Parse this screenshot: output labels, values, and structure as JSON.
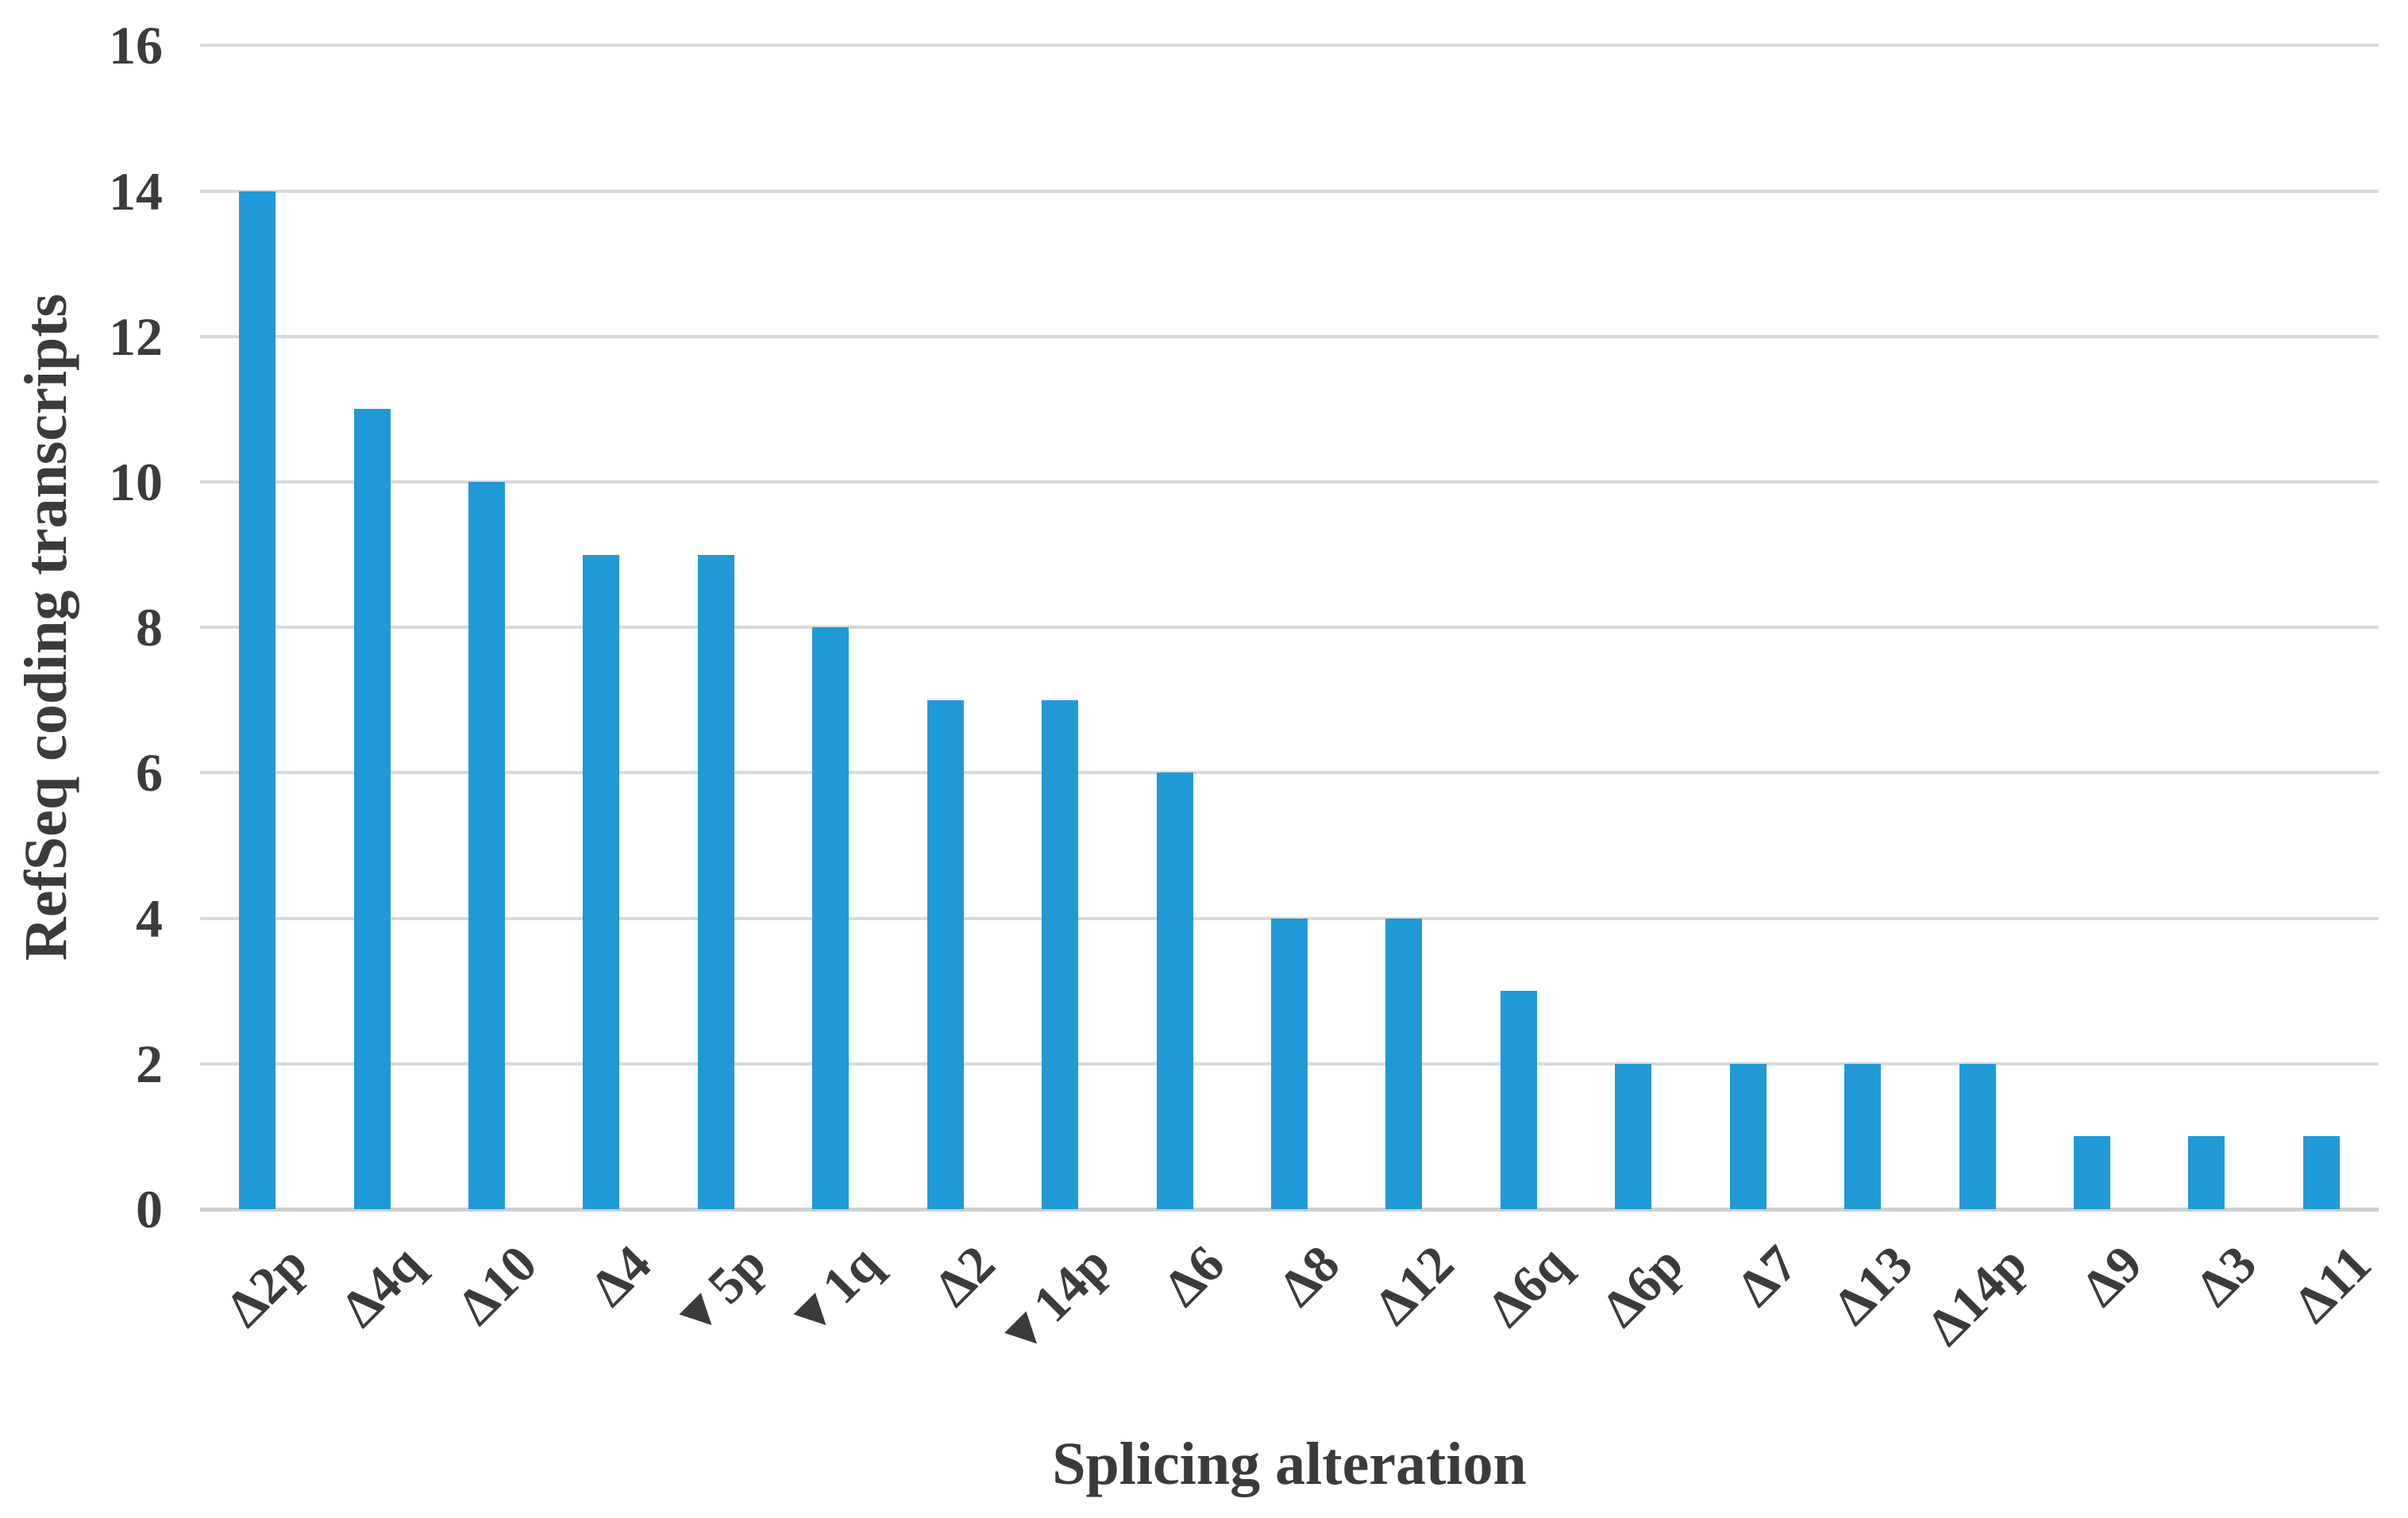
{
  "chart_data": {
    "type": "bar",
    "title": "",
    "xlabel": "Splicing alteration",
    "ylabel": "RefSeq coding transcripts",
    "categories": [
      "Δ2p",
      "Δ4q",
      "Δ10",
      "Δ4",
      "▼5p",
      "▼1q",
      "Δ2",
      "▼14p",
      "Δ6",
      "Δ8",
      "Δ12",
      "Δ6q",
      "Δ6p",
      "Δ7",
      "Δ13",
      "Δ14p",
      "Δ9",
      "Δ3",
      "Δ11"
    ],
    "values": [
      14,
      11,
      10,
      9,
      9,
      8,
      7,
      7,
      6,
      4,
      4,
      3,
      2,
      2,
      2,
      2,
      1,
      1,
      1
    ],
    "ylim": [
      0,
      16
    ],
    "yticks": [
      0,
      2,
      4,
      6,
      8,
      10,
      12,
      14,
      16
    ],
    "xtick_rotation_deg": -45,
    "grid": true,
    "legend": false,
    "bar_color": "#1f9ad6",
    "gridline_color": "#d9d9d9",
    "baseline_color": "#cfcfcf",
    "text_color": "#3b3b3b"
  }
}
